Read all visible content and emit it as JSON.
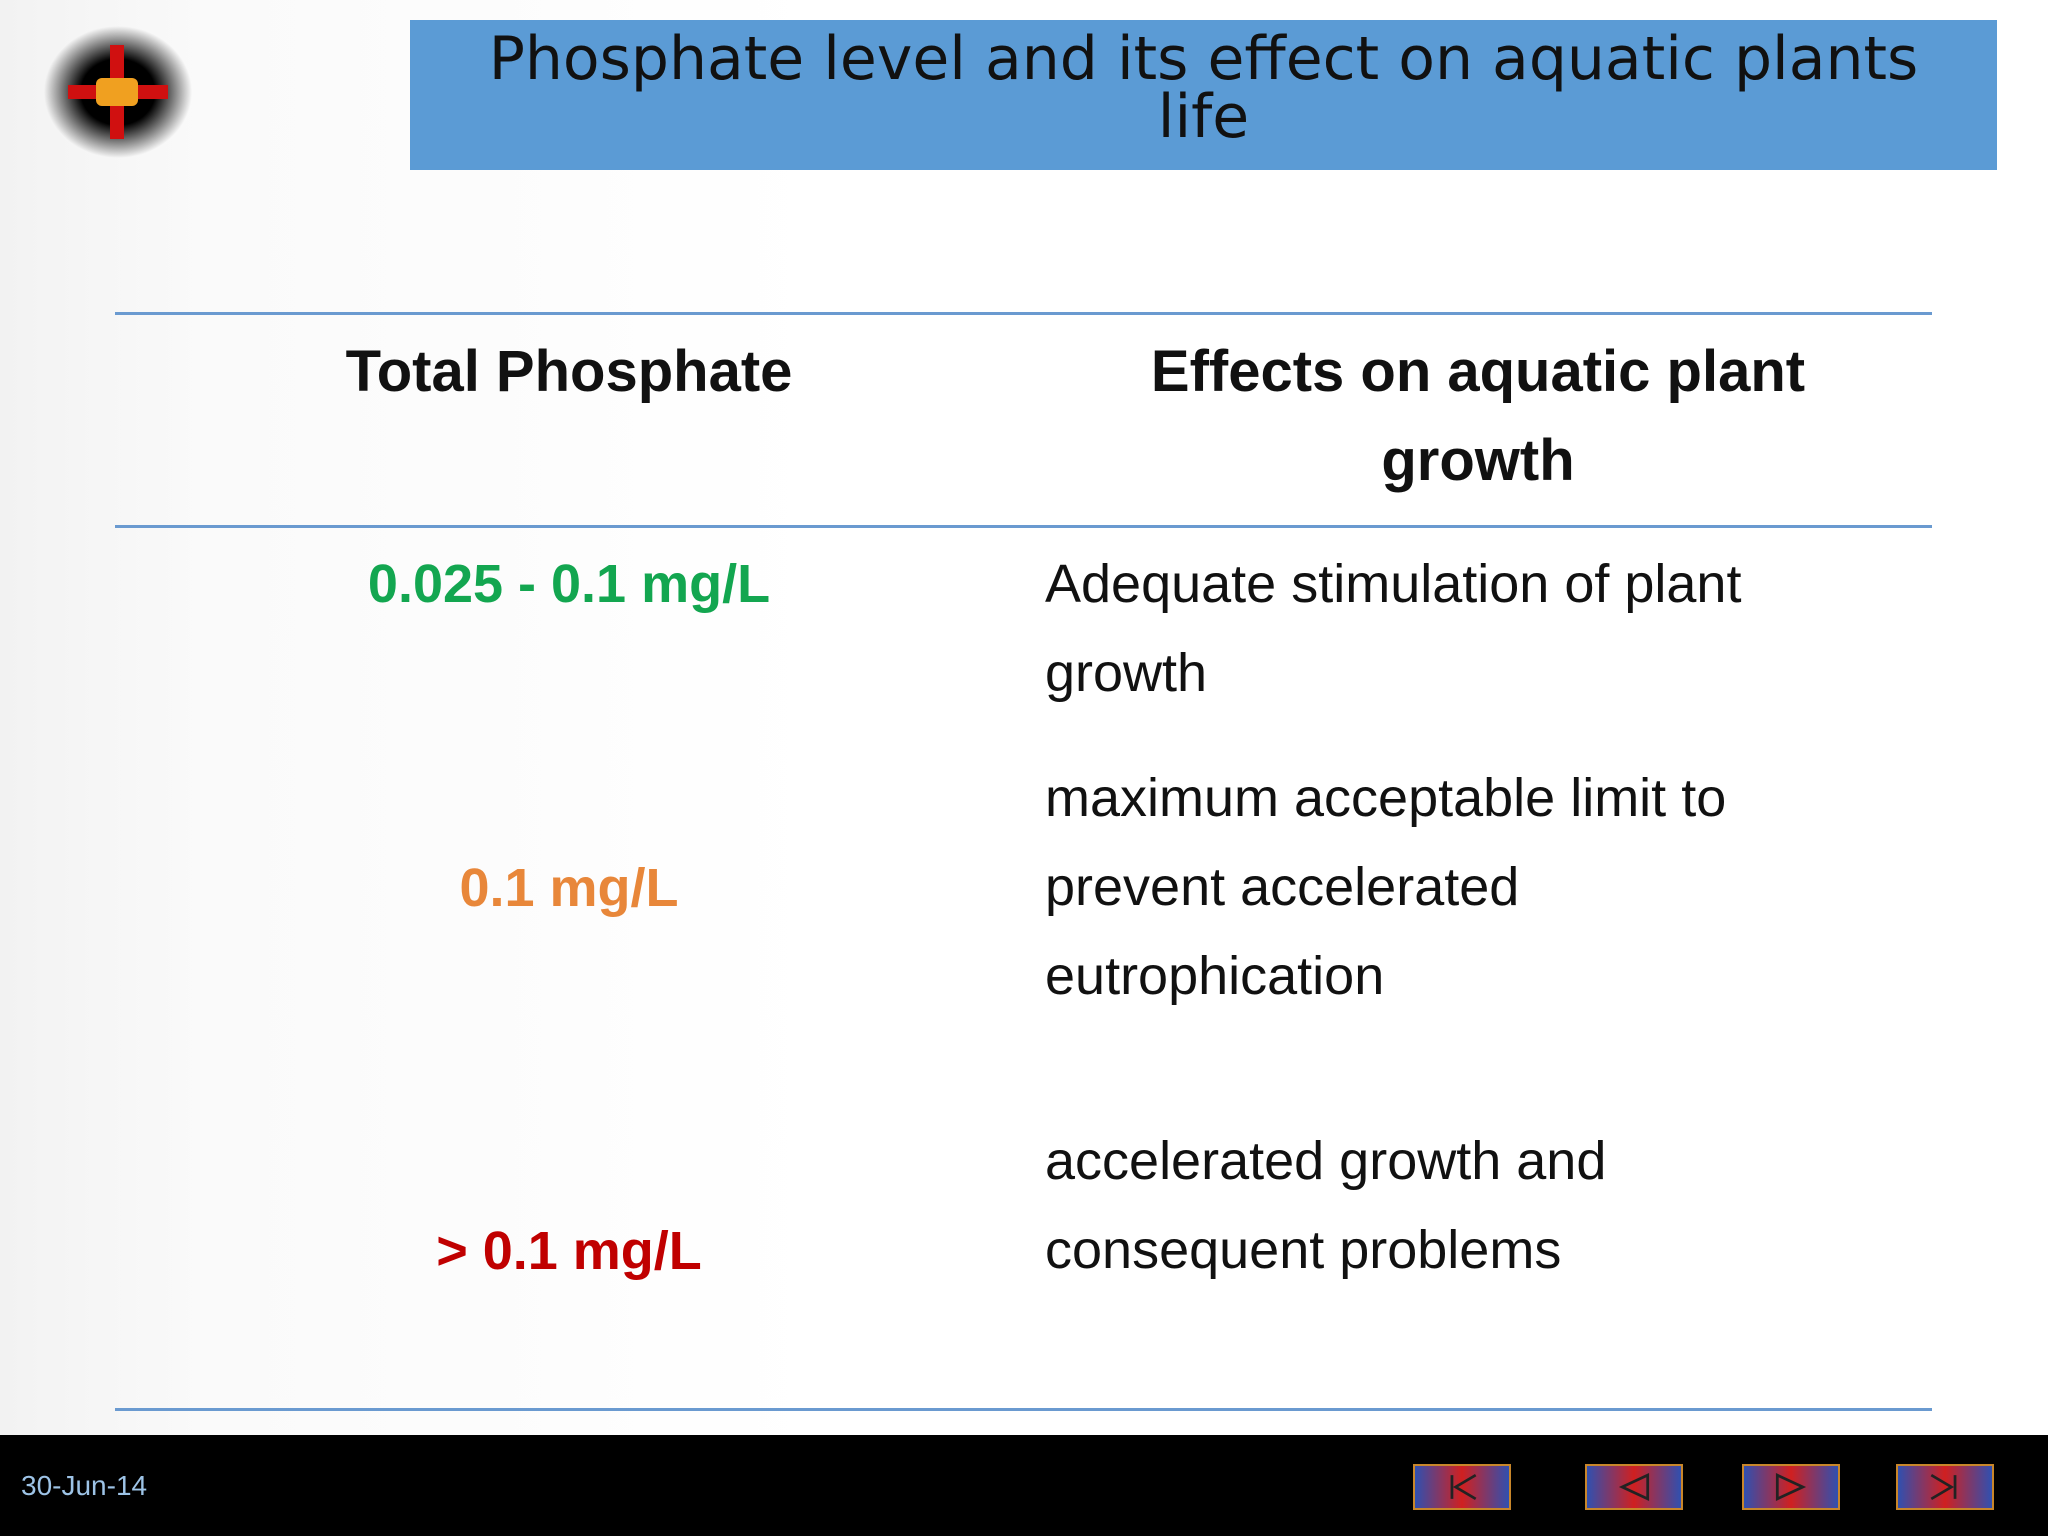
{
  "header": {
    "title": "Phosphate level and its effect on aquatic plants life"
  },
  "table": {
    "columns": [
      "Total Phosphate",
      "Effects on aquatic plant growth"
    ],
    "rows": [
      [
        "0.025 - 0.1 mg/L",
        "Adequate stimulation of plant growth"
      ],
      [
        "0.1 mg/L",
        "maximum acceptable limit to prevent accelerated eutrophication"
      ],
      [
        "> 0.1 mg/L",
        "accelerated growth and consequent problems"
      ]
    ]
  },
  "footer": {
    "date": "30-Jun-14"
  }
}
